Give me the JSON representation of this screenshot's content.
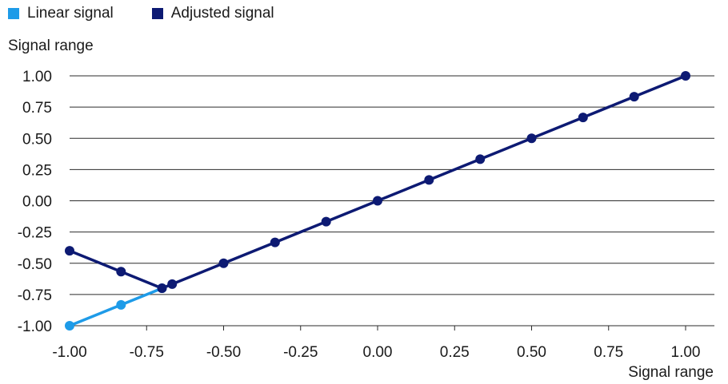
{
  "chart_data": {
    "type": "line",
    "xlabel": "Signal range",
    "ylabel": "Signal range",
    "xlim": [
      -1.0,
      1.0
    ],
    "ylim": [
      -1.0,
      1.0
    ],
    "x_ticks": [
      "-1.00",
      "-0.75",
      "-0.50",
      "-0.25",
      "0.00",
      "0.25",
      "0.50",
      "0.75",
      "1.00"
    ],
    "y_ticks": [
      "1.00",
      "0.75",
      "0.50",
      "0.25",
      "0.00",
      "-0.25",
      "-0.50",
      "-0.75",
      "-1.00"
    ],
    "grid": "horizontal",
    "legend_position": "top-left",
    "series": [
      {
        "name": "Linear signal",
        "color": "#1e9be8",
        "points": [
          [
            -1.0,
            -1.0
          ],
          [
            -0.833,
            -0.833
          ],
          [
            -0.7,
            -0.7
          ]
        ]
      },
      {
        "name": "Adjusted signal",
        "color": "#0d1a73",
        "points": [
          [
            -1.0,
            -0.4
          ],
          [
            -0.833,
            -0.567
          ],
          [
            -0.7,
            -0.7
          ],
          [
            -0.667,
            -0.667
          ],
          [
            -0.5,
            -0.5
          ],
          [
            -0.333,
            -0.333
          ],
          [
            -0.167,
            -0.167
          ],
          [
            0.0,
            0.0
          ],
          [
            0.167,
            0.167
          ],
          [
            0.333,
            0.333
          ],
          [
            0.5,
            0.5
          ],
          [
            0.667,
            0.667
          ],
          [
            0.833,
            0.833
          ],
          [
            1.0,
            1.0
          ]
        ]
      }
    ]
  }
}
